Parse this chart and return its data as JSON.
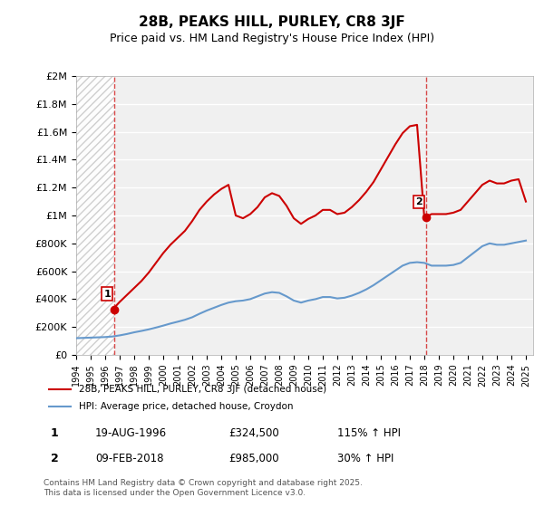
{
  "title": "28B, PEAKS HILL, PURLEY, CR8 3JF",
  "subtitle": "Price paid vs. HM Land Registry's House Price Index (HPI)",
  "xlabel": "",
  "ylabel": "",
  "background_color": "#ffffff",
  "plot_bg_color": "#f0f0f0",
  "grid_color": "#ffffff",
  "hpi_line_color": "#6699cc",
  "price_line_color": "#cc0000",
  "sale1_date_x": 1996.63,
  "sale1_price": 324500,
  "sale1_label": "1",
  "sale2_date_x": 2018.1,
  "sale2_price": 985000,
  "sale2_label": "2",
  "legend_label_price": "28B, PEAKS HILL, PURLEY, CR8 3JF (detached house)",
  "legend_label_hpi": "HPI: Average price, detached house, Croydon",
  "annotation1_date": "19-AUG-1996",
  "annotation1_price": "£324,500",
  "annotation1_hpi": "115% ↑ HPI",
  "annotation2_date": "09-FEB-2018",
  "annotation2_price": "£985,000",
  "annotation2_hpi": "30% ↑ HPI",
  "footer": "Contains HM Land Registry data © Crown copyright and database right 2025.\nThis data is licensed under the Open Government Licence v3.0.",
  "ylim": [
    0,
    2000000
  ],
  "xlim_start": 1994,
  "xlim_end": 2025.5,
  "yticks": [
    0,
    200000,
    400000,
    600000,
    800000,
    1000000,
    1200000,
    1400000,
    1600000,
    1800000,
    2000000
  ],
  "ytick_labels": [
    "£0",
    "£200K",
    "£400K",
    "£600K",
    "£800K",
    "£1M",
    "£1.2M",
    "£1.4M",
    "£1.6M",
    "£1.8M",
    "£2M"
  ],
  "xticks": [
    1994,
    1995,
    1996,
    1997,
    1998,
    1999,
    2000,
    2001,
    2002,
    2003,
    2004,
    2005,
    2006,
    2007,
    2008,
    2009,
    2010,
    2011,
    2012,
    2013,
    2014,
    2015,
    2016,
    2017,
    2018,
    2019,
    2020,
    2021,
    2022,
    2023,
    2024,
    2025
  ],
  "hpi_years": [
    1994.0,
    1994.5,
    1995.0,
    1995.5,
    1996.0,
    1996.5,
    1997.0,
    1997.5,
    1998.0,
    1998.5,
    1999.0,
    1999.5,
    2000.0,
    2000.5,
    2001.0,
    2001.5,
    2002.0,
    2002.5,
    2003.0,
    2003.5,
    2004.0,
    2004.5,
    2005.0,
    2005.5,
    2006.0,
    2006.5,
    2007.0,
    2007.5,
    2008.0,
    2008.5,
    2009.0,
    2009.5,
    2010.0,
    2010.5,
    2011.0,
    2011.5,
    2012.0,
    2012.5,
    2013.0,
    2013.5,
    2014.0,
    2014.5,
    2015.0,
    2015.5,
    2016.0,
    2016.5,
    2017.0,
    2017.5,
    2018.0,
    2018.5,
    2019.0,
    2019.5,
    2020.0,
    2020.5,
    2021.0,
    2021.5,
    2022.0,
    2022.5,
    2023.0,
    2023.5,
    2024.0,
    2024.5,
    2025.0
  ],
  "hpi_values": [
    120000,
    122000,
    124000,
    126000,
    128000,
    132000,
    140000,
    150000,
    162000,
    172000,
    183000,
    196000,
    210000,
    225000,
    238000,
    252000,
    270000,
    295000,
    318000,
    338000,
    358000,
    375000,
    385000,
    390000,
    400000,
    420000,
    440000,
    450000,
    445000,
    420000,
    390000,
    375000,
    390000,
    400000,
    415000,
    415000,
    405000,
    410000,
    425000,
    445000,
    470000,
    500000,
    535000,
    570000,
    605000,
    640000,
    660000,
    665000,
    660000,
    640000,
    640000,
    640000,
    645000,
    660000,
    700000,
    740000,
    780000,
    800000,
    790000,
    790000,
    800000,
    810000,
    820000
  ],
  "price_years": [
    1994.0,
    1994.5,
    1995.0,
    1995.5,
    1996.0,
    1996.5,
    1997.0,
    1997.5,
    1998.0,
    1998.5,
    1999.0,
    1999.5,
    2000.0,
    2000.5,
    2001.0,
    2001.5,
    2002.0,
    2002.5,
    2003.0,
    2003.5,
    2004.0,
    2004.5,
    2005.0,
    2005.5,
    2006.0,
    2006.5,
    2007.0,
    2007.5,
    2008.0,
    2008.5,
    2009.0,
    2009.5,
    2010.0,
    2010.5,
    2011.0,
    2011.5,
    2012.0,
    2012.5,
    2013.0,
    2013.5,
    2014.0,
    2014.5,
    2015.0,
    2015.5,
    2016.0,
    2016.5,
    2017.0,
    2017.5,
    2018.0,
    2018.5,
    2019.0,
    2019.5,
    2020.0,
    2020.5,
    2021.0,
    2021.5,
    2022.0,
    2022.5,
    2023.0,
    2023.5,
    2024.0,
    2024.5,
    2025.0
  ],
  "price_values": [
    null,
    null,
    null,
    null,
    null,
    324500,
    380000,
    430000,
    480000,
    530000,
    590000,
    660000,
    730000,
    790000,
    840000,
    890000,
    960000,
    1040000,
    1100000,
    1150000,
    1190000,
    1220000,
    1000000,
    980000,
    1010000,
    1060000,
    1130000,
    1160000,
    1140000,
    1070000,
    980000,
    940000,
    975000,
    1000000,
    1040000,
    1040000,
    1010000,
    1020000,
    1060000,
    1110000,
    1170000,
    1240000,
    1330000,
    1420000,
    1510000,
    1590000,
    1640000,
    1650000,
    985000,
    1010000,
    1010000,
    1010000,
    1020000,
    1040000,
    1100000,
    1160000,
    1220000,
    1250000,
    1230000,
    1230000,
    1250000,
    1260000,
    1100000
  ]
}
